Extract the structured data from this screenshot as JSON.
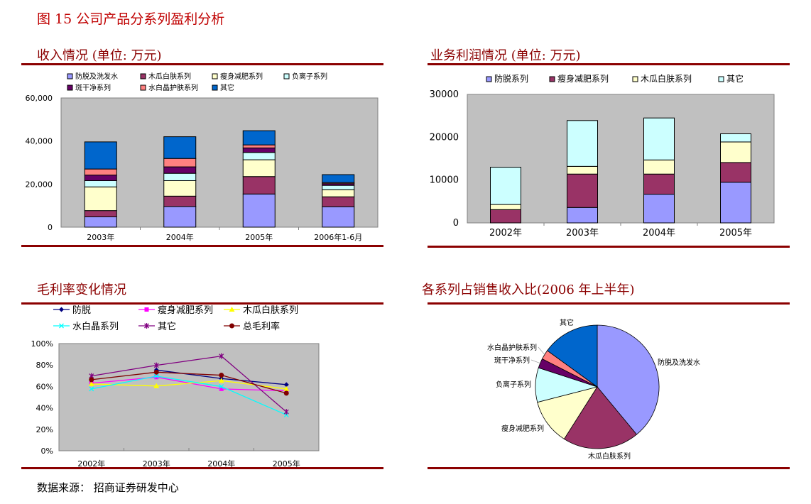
{
  "figure_title": "图 15  公司产品分系列盈利分析",
  "source": "数据来源：  招商证券研发中心",
  "chart_data": [
    {
      "type": "bar",
      "stacked": true,
      "title": "收入情况  (单位: 万元)",
      "categories": [
        "2003年",
        "2004年",
        "2005年",
        "2006年1-6月"
      ],
      "ylim": [
        0,
        60000
      ],
      "yticks": [
        "0",
        "20,000",
        "40,000",
        "60,000"
      ],
      "legend_placement": "top",
      "grid": false,
      "series": [
        {
          "name": "防脱及洗发水",
          "color": "#9999ff",
          "values": [
            4800,
            9600,
            15400,
            9500
          ]
        },
        {
          "name": "木瓜白肤系列",
          "color": "#993366",
          "values": [
            2900,
            4800,
            8100,
            4600
          ]
        },
        {
          "name": "瘦身减肥系列",
          "color": "#ffffcc",
          "values": [
            11000,
            7200,
            7800,
            3300
          ]
        },
        {
          "name": "负离子系列",
          "color": "#ccffff",
          "values": [
            2900,
            3400,
            3400,
            2000
          ]
        },
        {
          "name": "斑干净系列",
          "color": "#660066",
          "values": [
            2600,
            3000,
            2100,
            800
          ]
        },
        {
          "name": "水白晶护肤系列",
          "color": "#ff8080",
          "values": [
            2800,
            3900,
            1400,
            500
          ]
        },
        {
          "name": "其它",
          "color": "#0066cc",
          "values": [
            12600,
            10100,
            6600,
            3700
          ]
        }
      ]
    },
    {
      "type": "bar",
      "stacked": true,
      "title": "业务利润情况  (单位: 万元)",
      "categories": [
        "2002年",
        "2003年",
        "2004年",
        "2005年"
      ],
      "ylim": [
        0,
        30000
      ],
      "yticks": [
        "0",
        "10000",
        "20000",
        "30000"
      ],
      "legend_placement": "top",
      "grid": false,
      "series": [
        {
          "name": "防脱系列",
          "color": "#9999ff",
          "values": [
            0,
            3600,
            6700,
            9500
          ]
        },
        {
          "name": "瘦身减肥系列",
          "color": "#993366",
          "values": [
            3100,
            7800,
            4700,
            4600
          ]
        },
        {
          "name": "木瓜白肤系列",
          "color": "#ffffcc",
          "values": [
            1200,
            1800,
            3300,
            4800
          ]
        },
        {
          "name": "其它",
          "color": "#ccffff",
          "values": [
            8700,
            10700,
            9800,
            1900
          ]
        }
      ]
    },
    {
      "type": "line",
      "title": "毛利率变化情况",
      "categories": [
        "2002年",
        "2003年",
        "2004年",
        "2005年"
      ],
      "ylim": [
        0,
        100
      ],
      "yticks": [
        "0%",
        "20%",
        "40%",
        "60%",
        "80%",
        "100%"
      ],
      "legend_placement": "top",
      "grid": false,
      "series": [
        {
          "name": "防脱",
          "color": "#000080",
          "marker": "diamond",
          "values": [
            null,
            75.3,
            67.4,
            61.7
          ]
        },
        {
          "name": "瘦身减肥系列",
          "color": "#ff00ff",
          "marker": "square",
          "values": [
            63,
            68.7,
            57.7,
            56
          ]
        },
        {
          "name": "木瓜白肤系列",
          "color": "#ffff00",
          "marker": "triangle",
          "values": [
            62.3,
            60.4,
            65.4,
            57.7
          ]
        },
        {
          "name": "水白晶系列",
          "color": "#00ffff",
          "marker": "x",
          "values": [
            57.7,
            69.6,
            59.9,
            33.5
          ]
        },
        {
          "name": "其它",
          "color": "#800080",
          "marker": "star",
          "values": [
            69.8,
            79.7,
            88.3,
            36.3
          ]
        },
        {
          "name": "总毛利率",
          "color": "#800000",
          "marker": "circle",
          "values": [
            66.3,
            73.3,
            70.5,
            53.7
          ]
        }
      ]
    },
    {
      "type": "pie",
      "title": "各系列占销售收入比(2006 年上半年)",
      "slices": [
        {
          "name": "防脱及洗发水",
          "color": "#9999ff",
          "value": 39
        },
        {
          "name": "木瓜白肤系列",
          "color": "#993366",
          "value": 20
        },
        {
          "name": "瘦身减肥系列",
          "color": "#ffffcc",
          "value": 12
        },
        {
          "name": "负离子系列",
          "color": "#ccffff",
          "value": 9
        },
        {
          "name": "斑干净系列",
          "color": "#660066",
          "value": 2.5
        },
        {
          "name": "水白晶护肤系列",
          "color": "#ff8080",
          "value": 2.5
        },
        {
          "name": "其它",
          "color": "#0066cc",
          "value": 15
        }
      ]
    }
  ]
}
